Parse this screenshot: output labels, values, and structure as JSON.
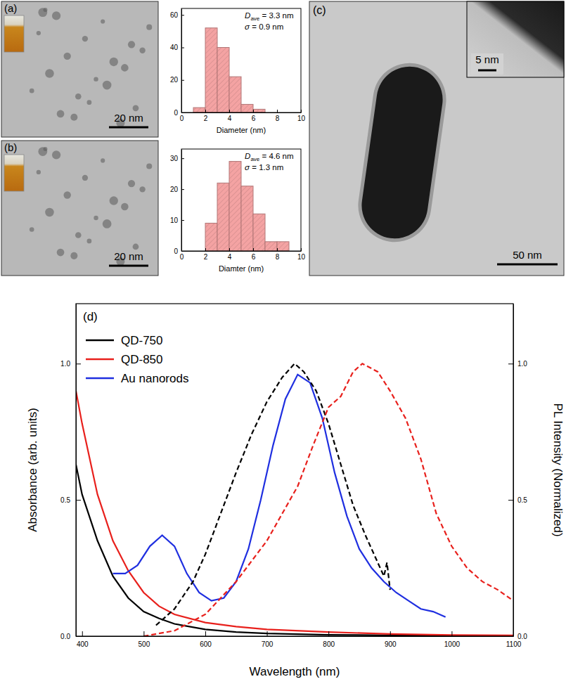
{
  "images": [
    {
      "label": "(a)",
      "scale_bar": "20 nm"
    },
    {
      "label": "(b)",
      "scale_bar": "20 nm"
    },
    {
      "label": "(c)",
      "scale_bar": "50 nm",
      "inset_scale_bar": "5 nm"
    }
  ],
  "chart_data": [
    {
      "type": "histogram",
      "x_label": "Diameter (nm)",
      "bins": [
        1,
        2,
        3,
        4,
        5,
        6,
        7
      ],
      "values": [
        3,
        52,
        40,
        22,
        5,
        2
      ],
      "color": "#f4a3a3",
      "xlim": [
        0,
        10
      ],
      "xticks": [
        0,
        2,
        4,
        6,
        8,
        10
      ],
      "ylim": [
        0,
        64
      ],
      "yticks": [
        0,
        20,
        40,
        60
      ],
      "annotations": [
        {
          "symbol": "D",
          "subscript": "ave",
          "text": " = 3.3 nm"
        },
        {
          "symbol": "σ",
          "text": " = 0.9 nm"
        }
      ]
    },
    {
      "type": "histogram",
      "x_label": "Diamter (nm)",
      "bins": [
        2,
        3,
        4,
        5,
        6,
        7,
        8,
        9
      ],
      "values": [
        9,
        22,
        29,
        21,
        12,
        3,
        3
      ],
      "color": "#f4a3a3",
      "xlim": [
        0,
        10
      ],
      "xticks": [
        0,
        2,
        4,
        6,
        8,
        10
      ],
      "ylim": [
        0,
        33
      ],
      "yticks": [
        0,
        10,
        20,
        30
      ],
      "annotations": [
        {
          "symbol": "D",
          "subscript": "ave",
          "text": " = 4.6 nm"
        },
        {
          "symbol": "σ",
          "text": " = 1.3 nm"
        }
      ]
    },
    {
      "type": "line",
      "label": "(d)",
      "x_label": "Wavelength (nm)",
      "y_label": "Absorbance (arb. units)",
      "y2_label": "PL Intensity (Normalized)",
      "xlim": [
        390,
        1100
      ],
      "xticks": [
        400,
        500,
        600,
        700,
        800,
        900,
        1000,
        1100
      ],
      "ylim": [
        0,
        1.22
      ],
      "yticks": [
        {
          "value": 0,
          "label": "0.0"
        },
        {
          "value": 0.5,
          "label": "0.5"
        },
        {
          "value": 1,
          "label": "1.0"
        }
      ],
      "y2lim": [
        0,
        1.22
      ],
      "y2ticks": [
        {
          "value": 0,
          "label": "0.0"
        },
        {
          "value": 0.5,
          "label": "0.5"
        },
        {
          "value": 1,
          "label": "1.0"
        }
      ],
      "legend": "upper left",
      "series": [
        {
          "name": "QD-750",
          "color": "#000000",
          "line_style": "solid",
          "axis": "y",
          "x": [
            390,
            400,
            425,
            450,
            475,
            500,
            525,
            550,
            600,
            650,
            700,
            800,
            900,
            1000,
            1100
          ],
          "values": [
            0.63,
            0.52,
            0.35,
            0.22,
            0.14,
            0.09,
            0.065,
            0.045,
            0.025,
            0.015,
            0.01,
            0.005,
            0.003,
            0.002,
            0.002
          ]
        },
        {
          "name": "QD-850",
          "color": "#e8201c",
          "line_style": "solid",
          "axis": "y",
          "x": [
            390,
            400,
            425,
            450,
            475,
            500,
            525,
            550,
            600,
            650,
            700,
            800,
            900,
            1000,
            1100
          ],
          "values": [
            0.9,
            0.78,
            0.52,
            0.35,
            0.24,
            0.16,
            0.11,
            0.08,
            0.05,
            0.035,
            0.025,
            0.015,
            0.008,
            0.004,
            0.003
          ]
        },
        {
          "name": "Au nanorods",
          "color": "#1f2fe0",
          "line_style": "solid",
          "axis": "y",
          "x": [
            450,
            470,
            490,
            510,
            530,
            550,
            570,
            590,
            610,
            630,
            650,
            670,
            690,
            710,
            730,
            750,
            770,
            790,
            810,
            830,
            850,
            870,
            890,
            910,
            930,
            950,
            970,
            990
          ],
          "values": [
            0.23,
            0.23,
            0.26,
            0.33,
            0.37,
            0.33,
            0.23,
            0.16,
            0.13,
            0.14,
            0.2,
            0.32,
            0.5,
            0.7,
            0.87,
            0.96,
            0.93,
            0.8,
            0.6,
            0.44,
            0.32,
            0.25,
            0.2,
            0.16,
            0.13,
            0.1,
            0.09,
            0.07
          ]
        },
        {
          "name": "QD-750",
          "color": "#000000",
          "line_style": "dashed",
          "axis": "y2",
          "x": [
            520,
            550,
            580,
            600,
            625,
            650,
            675,
            700,
            725,
            745,
            760,
            780,
            800,
            820,
            840,
            860,
            880,
            890,
            895,
            900
          ],
          "values": [
            0.04,
            0.1,
            0.2,
            0.3,
            0.45,
            0.6,
            0.74,
            0.86,
            0.95,
            1.0,
            0.97,
            0.9,
            0.78,
            0.63,
            0.48,
            0.37,
            0.27,
            0.22,
            0.27,
            0.17
          ]
        },
        {
          "name": "QD-850",
          "color": "#e8201c",
          "line_style": "dashed",
          "axis": "y2",
          "x": [
            500,
            550,
            600,
            650,
            700,
            750,
            775,
            800,
            820,
            840,
            855,
            880,
            900,
            925,
            950,
            975,
            1000,
            1025,
            1050,
            1075,
            1100
          ],
          "values": [
            0,
            0.02,
            0.08,
            0.2,
            0.35,
            0.55,
            0.7,
            0.84,
            0.88,
            0.97,
            1.0,
            0.97,
            0.9,
            0.8,
            0.65,
            0.45,
            0.33,
            0.25,
            0.2,
            0.17,
            0.13
          ]
        }
      ]
    }
  ]
}
